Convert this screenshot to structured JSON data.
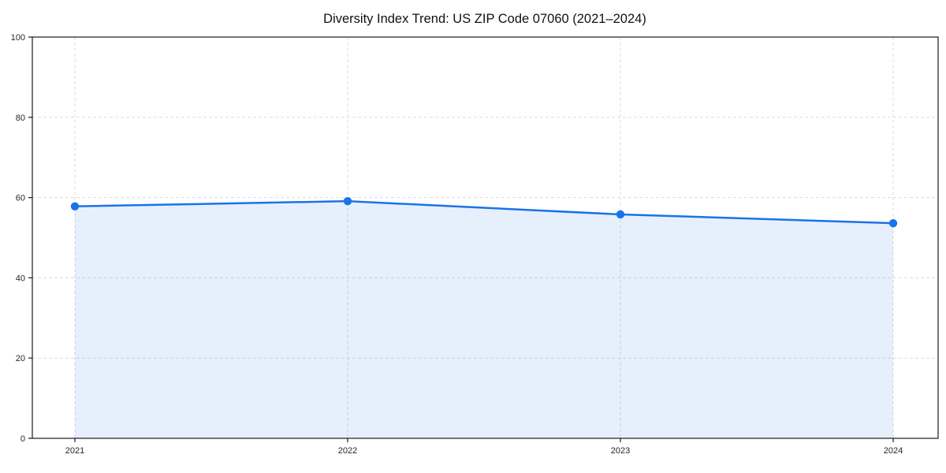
{
  "chart_data": {
    "type": "line",
    "title": "Diversity Index Trend: US ZIP Code 07060 (2021–2024)",
    "xlabel": "",
    "ylabel": "",
    "x": [
      2021,
      2022,
      2023,
      2024
    ],
    "values": [
      57.8,
      59.1,
      55.8,
      53.6
    ],
    "ylim": [
      0,
      100
    ],
    "yticks": [
      0,
      20,
      40,
      60,
      80,
      100
    ],
    "xtick_labels": [
      "2021",
      "2022",
      "2023",
      "2024"
    ],
    "ytick_labels": [
      "0",
      "20",
      "40",
      "60",
      "80",
      "100"
    ],
    "grid": "dashed",
    "legend_position": "none",
    "line_color": "#1a73e8",
    "marker": "circle",
    "fill_below": true,
    "fill_color": "rgba(26,115,232,0.11)",
    "grid_color": "#dcdcdc",
    "frame_color": "#1a1a1a",
    "background_color": "#ffffff"
  }
}
